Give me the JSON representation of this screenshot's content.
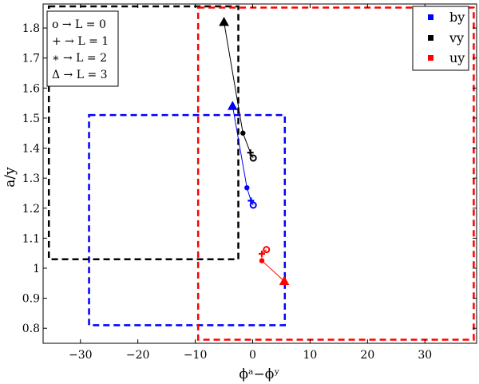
{
  "chart_data": {
    "type": "scatter",
    "xlabel": "ϕᵃ−ϕʸ",
    "ylabel": "a/y",
    "xlim": [
      -36.5,
      39
    ],
    "ylim": [
      0.75,
      1.88
    ],
    "x_ticks": [
      -30,
      -20,
      -10,
      0,
      10,
      20,
      30
    ],
    "y_ticks": [
      0.8,
      0.9,
      1,
      1.1,
      1.2,
      1.3,
      1.4,
      1.5,
      1.6,
      1.7,
      1.8
    ],
    "x_tick_labels": [
      "−30",
      "−20",
      "−10",
      "0",
      "10",
      "20",
      "30"
    ],
    "y_tick_labels": [
      "0.8",
      "0.9",
      "1",
      "1.1",
      "1.2",
      "1.3",
      "1.4",
      "1.5",
      "1.6",
      "1.7",
      "1.8"
    ],
    "grid": false,
    "legend_position": "top-right",
    "marker_legend_position": "top-left",
    "marker_legend": [
      "o → L = 0",
      "+ → L = 1",
      "∗ → L = 2",
      "Δ → L = 3"
    ],
    "series": [
      {
        "name": "by",
        "color": "#0000ff",
        "points": [
          {
            "L": 0,
            "marker": "circle",
            "x": 0.1,
            "y": 1.21
          },
          {
            "L": 1,
            "marker": "plus",
            "x": -0.3,
            "y": 1.225
          },
          {
            "L": 2,
            "marker": "star",
            "x": -1.0,
            "y": 1.268
          },
          {
            "L": 3,
            "marker": "triangle",
            "x": -3.5,
            "y": 1.54
          }
        ],
        "box": {
          "x": [
            -28.5,
            5.6
          ],
          "y": [
            0.81,
            1.51
          ]
        }
      },
      {
        "name": "vy",
        "color": "#000000",
        "points": [
          {
            "L": 0,
            "marker": "circle",
            "x": 0.1,
            "y": 1.367
          },
          {
            "L": 1,
            "marker": "plus",
            "x": -0.4,
            "y": 1.385
          },
          {
            "L": 2,
            "marker": "star",
            "x": -1.7,
            "y": 1.45
          },
          {
            "L": 3,
            "marker": "triangle",
            "x": -5.0,
            "y": 1.82
          }
        ],
        "box": {
          "x": [
            -35.5,
            -2.5
          ],
          "y": [
            1.03,
            1.872
          ]
        }
      },
      {
        "name": "uy",
        "color": "#ff0000",
        "points": [
          {
            "L": 0,
            "marker": "circle",
            "x": 2.4,
            "y": 1.062
          },
          {
            "L": 1,
            "marker": "plus",
            "x": 1.6,
            "y": 1.048
          },
          {
            "L": 2,
            "marker": "star",
            "x": 1.6,
            "y": 1.025
          },
          {
            "L": 3,
            "marker": "triangle",
            "x": 5.5,
            "y": 0.957
          }
        ],
        "box": {
          "x": [
            -9.5,
            38.5
          ],
          "y": [
            0.762,
            1.868
          ]
        }
      }
    ]
  }
}
